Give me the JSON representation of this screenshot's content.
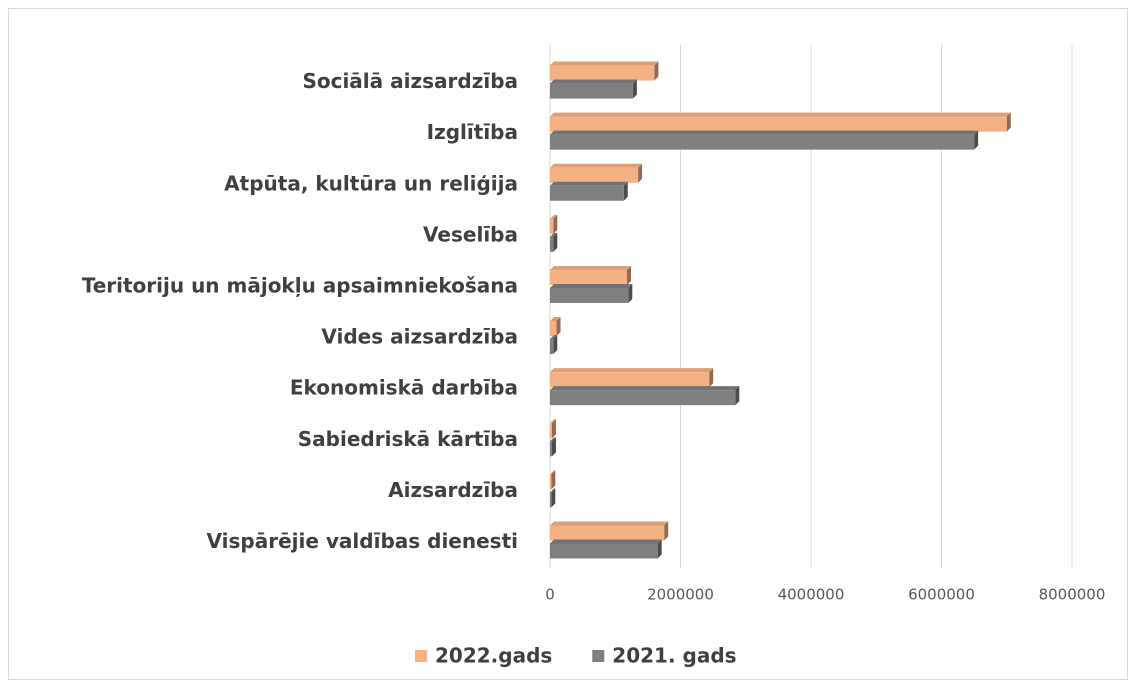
{
  "chart_data": {
    "type": "bar",
    "orientation": "horizontal",
    "categories": [
      "Sociālā aizsardzība",
      "Izglītība",
      "Atpūta, kultūra un reliģija",
      "Veselība",
      "Teritoriju un mājokļu apsaimniekošana",
      "Vides aizsardzība",
      "Ekonomiskā darbība",
      "Sabiedriskā kārtība",
      "Aizsardzība",
      "Vispārējie valdības dienesti"
    ],
    "series": [
      {
        "name": "2022.gads",
        "color": "#f4b183",
        "values": [
          1600000,
          7000000,
          1350000,
          50000,
          1180000,
          100000,
          2440000,
          30000,
          20000,
          1750000
        ]
      },
      {
        "name": "2021. gads",
        "color": "#7f7f7f",
        "values": [
          1270000,
          6500000,
          1130000,
          50000,
          1200000,
          50000,
          2840000,
          30000,
          20000,
          1650000
        ]
      }
    ],
    "xlim": [
      0,
      8000000
    ],
    "xticks": [
      0,
      2000000,
      4000000,
      6000000,
      8000000
    ],
    "grid": true,
    "legend": "bottom"
  }
}
